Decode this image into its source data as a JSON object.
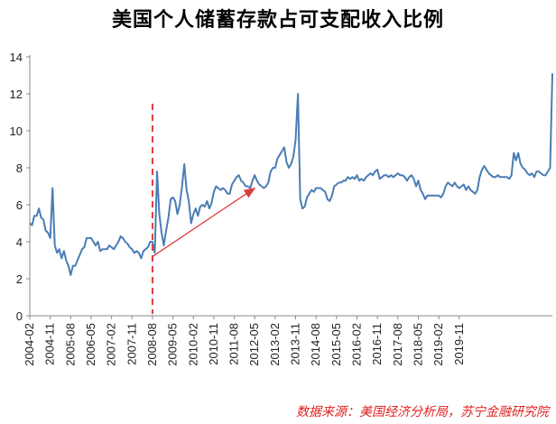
{
  "chart_data": {
    "type": "line",
    "title": "美国个人储蓄存款占可支配收入比例",
    "xlabel": "",
    "ylabel": "",
    "ylim": [
      0,
      14
    ],
    "yticks": [
      0,
      2,
      4,
      6,
      8,
      10,
      12,
      14
    ],
    "xtick_labels": [
      "2004-02",
      "2004-11",
      "2005-08",
      "2006-05",
      "2007-02",
      "2007-11",
      "2008-08",
      "2009-05",
      "2010-02",
      "2010-11",
      "2011-08",
      "2012-05",
      "2013-02",
      "2013-11",
      "2014-08",
      "2015-05",
      "2016-02",
      "2016-11",
      "2017-08",
      "2018-05",
      "2019-02",
      "2019-11"
    ],
    "start_month": "2004-02",
    "line_color": "#4a7db5",
    "marker_line_color": "#e03c3c",
    "arrow_color": "#e03c3c",
    "vertical_marker_x": "2008-08",
    "arrow": {
      "from": [
        "2008-08",
        3.2
      ],
      "to": [
        "2012-05",
        6.9
      ]
    },
    "series": [
      {
        "values": [
          5.0,
          4.9,
          5.4,
          5.4,
          5.8,
          5.3,
          5.2,
          4.6,
          4.5,
          4.2,
          6.9,
          3.8,
          3.4,
          3.6,
          3.1,
          3.5,
          3.0,
          2.7,
          2.2,
          2.7,
          2.7,
          3.0,
          3.3,
          3.6,
          3.7,
          4.2,
          4.2,
          4.2,
          4.0,
          3.8,
          4.0,
          3.5,
          3.6,
          3.6,
          3.6,
          3.8,
          3.7,
          3.6,
          3.8,
          4.0,
          4.3,
          4.2,
          4.0,
          3.9,
          3.7,
          3.6,
          3.4,
          3.5,
          3.4,
          3.1,
          3.5,
          3.6,
          3.7,
          4.0,
          4.0,
          3.4,
          7.8,
          5.5,
          4.5,
          3.8,
          4.6,
          5.3,
          6.3,
          6.4,
          6.2,
          5.5,
          6.0,
          7.0,
          8.2,
          6.8,
          6.2,
          5.0,
          5.5,
          5.8,
          5.4,
          5.9,
          6.0,
          5.9,
          6.2,
          5.8,
          6.1,
          6.7,
          7.0,
          6.9,
          6.8,
          6.9,
          6.8,
          6.6,
          6.6,
          7.1,
          7.3,
          7.5,
          7.6,
          7.3,
          7.2,
          7.0,
          7.0,
          6.9,
          7.3,
          7.6,
          7.3,
          7.1,
          7.0,
          6.9,
          7.0,
          7.2,
          7.8,
          8.0,
          8.0,
          8.5,
          8.7,
          8.9,
          9.1,
          8.3,
          8.0,
          8.2,
          8.6,
          9.5,
          12.0,
          6.3,
          5.8,
          5.9,
          6.4,
          6.6,
          6.8,
          6.7,
          6.9,
          6.9,
          6.9,
          6.8,
          6.7,
          6.3,
          6.2,
          6.5,
          7.0,
          7.1,
          7.2,
          7.2,
          7.3,
          7.3,
          7.5,
          7.4,
          7.5,
          7.4,
          7.6,
          7.3,
          7.4,
          7.3,
          7.5,
          7.6,
          7.7,
          7.6,
          7.8,
          7.9,
          7.4,
          7.5,
          7.6,
          7.6,
          7.5,
          7.6,
          7.5,
          7.6,
          7.7,
          7.6,
          7.6,
          7.5,
          7.3,
          7.5,
          7.6,
          7.4,
          7.0,
          7.3,
          6.8,
          6.6,
          6.3,
          6.5,
          6.5,
          6.5,
          6.5,
          6.5,
          6.5,
          6.4,
          6.6,
          7.0,
          7.2,
          7.1,
          7.0,
          7.2,
          7.0,
          6.9,
          7.0,
          7.1,
          6.8,
          7.0,
          6.8,
          6.7,
          6.6,
          6.8,
          7.5,
          7.9,
          8.1,
          7.9,
          7.7,
          7.6,
          7.5,
          7.5,
          7.6,
          7.5,
          7.5,
          7.5,
          7.5,
          7.4,
          7.6,
          8.8,
          8.4,
          8.8,
          8.2,
          8.0,
          7.9,
          7.7,
          7.6,
          7.7,
          7.5,
          7.8,
          7.8,
          7.7,
          7.6,
          7.6,
          7.8,
          8.0,
          13.1
        ]
      }
    ]
  },
  "source_note": "数据来源：美国经济分析局，苏宁金融研究院"
}
